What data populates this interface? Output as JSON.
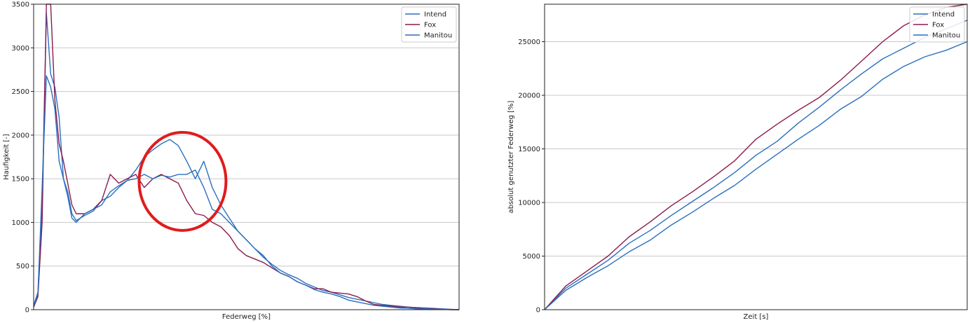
{
  "colors": {
    "intend": "#2a6fbe",
    "fox": "#8b1a4f",
    "manitou": "#2a6fbe",
    "annotation": "#e01c1c",
    "grid": "#c8c8c8"
  },
  "chart_data": [
    {
      "type": "line",
      "xlabel": "Federweg [%]",
      "ylabel": "Haufigkeit [-]",
      "ylim": [
        0,
        3500
      ],
      "yticks": [
        0,
        500,
        1000,
        1500,
        2000,
        2500,
        3000,
        3500
      ],
      "xlim": [
        0,
        100
      ],
      "grid": "horizontal",
      "legend": "top-right",
      "annotation": "red-ellipse-around-mid-travel-peak",
      "series": [
        {
          "name": "Intend",
          "color": "intend",
          "x": [
            0,
            1,
            2,
            3,
            4,
            5,
            6,
            7,
            8,
            9,
            10,
            12,
            14,
            16,
            18,
            20,
            22,
            24,
            26,
            28,
            30,
            32,
            34,
            36,
            38,
            40,
            42,
            44,
            46,
            48,
            50,
            52,
            54,
            56,
            58,
            60,
            62,
            64,
            66,
            68,
            70,
            72,
            74,
            76,
            78,
            80,
            82,
            84,
            86,
            88,
            90,
            92,
            94,
            96,
            98,
            100
          ],
          "y": [
            50,
            200,
            1200,
            3400,
            2700,
            2550,
            2200,
            1500,
            1350,
            1100,
            1020,
            1080,
            1130,
            1250,
            1300,
            1400,
            1480,
            1600,
            1750,
            1830,
            1900,
            1950,
            1880,
            1700,
            1500,
            1700,
            1400,
            1200,
            1050,
            900,
            800,
            700,
            600,
            520,
            450,
            400,
            360,
            300,
            260,
            220,
            200,
            170,
            140,
            120,
            100,
            80,
            60,
            50,
            40,
            30,
            25,
            20,
            15,
            10,
            5,
            0
          ]
        },
        {
          "name": "Fox",
          "color": "fox",
          "x": [
            0,
            1,
            2,
            3,
            4,
            5,
            6,
            7,
            8,
            9,
            10,
            12,
            14,
            16,
            18,
            20,
            22,
            24,
            26,
            28,
            30,
            32,
            34,
            36,
            38,
            40,
            42,
            44,
            46,
            48,
            50,
            52,
            54,
            56,
            58,
            60,
            62,
            64,
            66,
            68,
            70,
            72,
            74,
            76,
            78,
            80,
            82,
            84,
            86,
            88,
            90,
            92,
            94,
            96,
            98,
            100
          ],
          "y": [
            30,
            150,
            1000,
            3500,
            3500,
            2400,
            1900,
            1700,
            1450,
            1200,
            1100,
            1100,
            1150,
            1250,
            1550,
            1450,
            1500,
            1550,
            1400,
            1500,
            1550,
            1500,
            1450,
            1250,
            1100,
            1080,
            1000,
            950,
            850,
            700,
            620,
            580,
            540,
            480,
            420,
            380,
            320,
            280,
            240,
            240,
            200,
            190,
            180,
            150,
            100,
            60,
            50,
            40,
            30,
            30,
            20,
            10,
            10,
            5,
            0,
            0
          ]
        },
        {
          "name": "Manitou",
          "color": "manitou",
          "x": [
            0,
            1,
            2,
            3,
            4,
            5,
            6,
            7,
            8,
            9,
            10,
            12,
            14,
            16,
            18,
            20,
            22,
            24,
            26,
            28,
            30,
            32,
            34,
            36,
            38,
            40,
            42,
            44,
            46,
            48,
            50,
            52,
            54,
            56,
            58,
            60,
            62,
            64,
            66,
            68,
            70,
            72,
            74,
            76,
            78,
            80,
            82,
            84,
            86,
            88,
            90,
            92,
            94,
            96,
            98,
            100
          ],
          "y": [
            40,
            180,
            1400,
            2680,
            2550,
            2300,
            1700,
            1500,
            1300,
            1050,
            1000,
            1100,
            1150,
            1200,
            1350,
            1420,
            1480,
            1500,
            1550,
            1500,
            1540,
            1520,
            1550,
            1550,
            1600,
            1400,
            1150,
            1100,
            1000,
            900,
            800,
            700,
            620,
            500,
            420,
            380,
            320,
            280,
            230,
            200,
            180,
            150,
            110,
            90,
            70,
            50,
            40,
            30,
            20,
            15,
            10,
            8,
            5,
            3,
            2,
            0
          ]
        }
      ]
    },
    {
      "type": "line",
      "xlabel": "Zeit [s]",
      "ylabel": "absolut genutzter Federweg [%]",
      "ylim": [
        0,
        28500
      ],
      "yticks": [
        0,
        5000,
        10000,
        15000,
        20000,
        25000
      ],
      "xlim": [
        0,
        100
      ],
      "grid": "horizontal",
      "legend": "top-right",
      "series": [
        {
          "name": "Intend",
          "color": "intend",
          "x": [
            0,
            5,
            10,
            15,
            20,
            25,
            30,
            35,
            40,
            45,
            50,
            55,
            60,
            65,
            70,
            75,
            80,
            85,
            90,
            95,
            100
          ],
          "y": [
            0,
            2000,
            3300,
            4600,
            6200,
            7400,
            8800,
            10100,
            11400,
            12800,
            14400,
            15700,
            17400,
            18900,
            20500,
            22000,
            23400,
            24400,
            25400,
            26200,
            27000
          ]
        },
        {
          "name": "Fox",
          "color": "fox",
          "x": [
            0,
            5,
            10,
            15,
            20,
            25,
            30,
            35,
            40,
            45,
            50,
            55,
            60,
            65,
            70,
            75,
            80,
            85,
            90,
            95,
            100
          ],
          "y": [
            0,
            2200,
            3600,
            5000,
            6800,
            8200,
            9700,
            11000,
            12400,
            13900,
            15900,
            17300,
            18600,
            19800,
            21400,
            23200,
            25000,
            26500,
            27500,
            28200,
            28800
          ]
        },
        {
          "name": "Manitou",
          "color": "manitou",
          "x": [
            0,
            5,
            10,
            15,
            20,
            25,
            30,
            35,
            40,
            45,
            50,
            55,
            60,
            65,
            70,
            75,
            80,
            85,
            90,
            95,
            100
          ],
          "y": [
            0,
            1800,
            3000,
            4100,
            5400,
            6500,
            7900,
            9100,
            10400,
            11600,
            13100,
            14500,
            15900,
            17200,
            18700,
            19900,
            21500,
            22700,
            23600,
            24200,
            25000
          ]
        }
      ]
    }
  ]
}
